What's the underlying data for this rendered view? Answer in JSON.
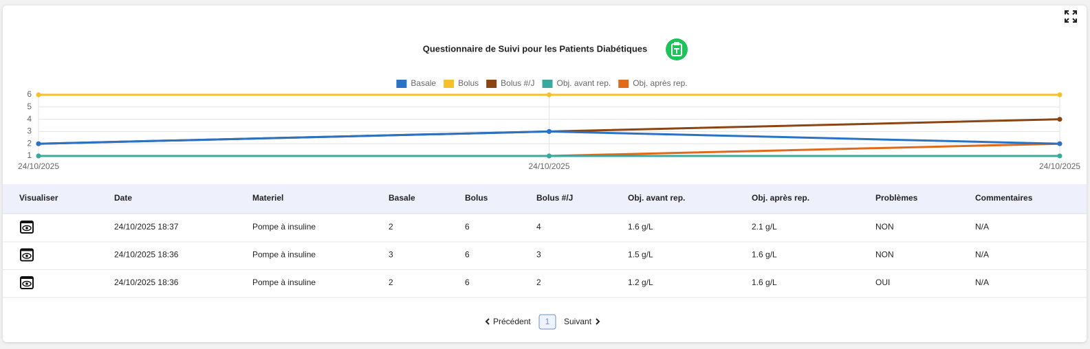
{
  "chart_data": {
    "type": "line",
    "title": "Questionnaire de Suivi pour les Patients Diabétiques",
    "categories": [
      "24/10/2025",
      "24/10/2025",
      "24/10/2025"
    ],
    "series": [
      {
        "name": "Basale",
        "color": "#2a73c4",
        "values": [
          2,
          3,
          2
        ]
      },
      {
        "name": "Bolus",
        "color": "#f5c02a",
        "values": [
          6,
          6,
          6
        ]
      },
      {
        "name": "Bolus #/J",
        "color": "#8b4513",
        "values": [
          2,
          3,
          4
        ]
      },
      {
        "name": "Obj. avant rep.",
        "color": "#3aa89f",
        "values": [
          1,
          1,
          1
        ]
      },
      {
        "name": "Obj. après rep.",
        "color": "#e06a1a",
        "values": [
          1,
          1,
          2
        ]
      }
    ],
    "ylim": [
      1,
      6
    ],
    "yticks": [
      1,
      2,
      3,
      4,
      5,
      6
    ],
    "grid": true,
    "legend": "top"
  },
  "table": {
    "columns": [
      "Visualiser",
      "Date",
      "Materiel",
      "Basale",
      "Bolus",
      "Bolus #/J",
      "Obj. avant rep.",
      "Obj. après rep.",
      "Problèmes",
      "Commentaires"
    ],
    "rows": [
      [
        "24/10/2025 18:37",
        "Pompe à insuline",
        "2",
        "6",
        "4",
        "1.6 g/L",
        "2.1 g/L",
        "NON",
        "N/A"
      ],
      [
        "24/10/2025 18:36",
        "Pompe à insuline",
        "3",
        "6",
        "3",
        "1.5 g/L",
        "1.6 g/L",
        "NON",
        "N/A"
      ],
      [
        "24/10/2025 18:36",
        "Pompe à insuline",
        "2",
        "6",
        "2",
        "1.2 g/L",
        "1.6 g/L",
        "OUI",
        "N/A"
      ]
    ]
  },
  "pagination": {
    "previous": "Précédent",
    "page": "1",
    "next": "Suivant"
  }
}
